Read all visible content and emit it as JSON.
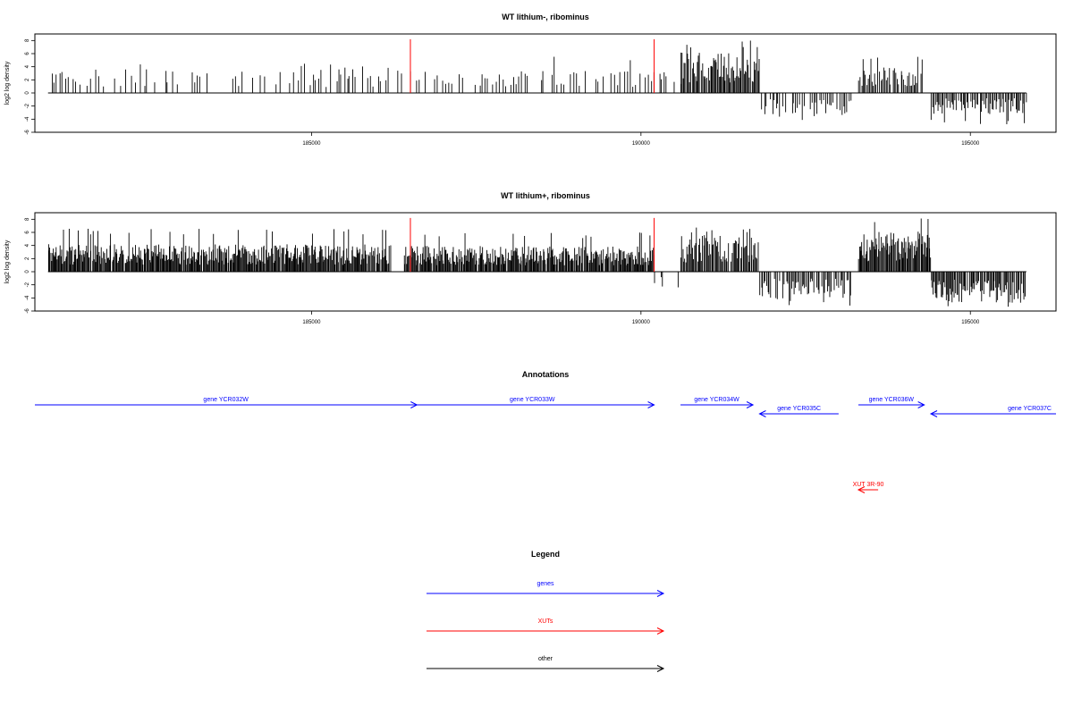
{
  "chart_data": [
    {
      "type": "bar",
      "title": "WT lithium-, ribominus",
      "ylabel": "log2 log density",
      "xlim": [
        180800,
        196300
      ],
      "ylim": [
        -6,
        9
      ],
      "yticks": [
        -6,
        -4,
        -2,
        0,
        2,
        4,
        6,
        8
      ],
      "ytick_labels": [
        "-6",
        "-4",
        "-2",
        "0",
        "2",
        "4",
        "6",
        "8"
      ],
      "xticks": [
        185000,
        190000,
        195000
      ],
      "xtick_labels": [
        "185000",
        "190000",
        "195000"
      ],
      "data_span": [
        181000,
        195850
      ],
      "marker_lines": {
        "color": "#ff0000",
        "x": [
          186500,
          190200
        ],
        "top": 8.2
      },
      "segments": [
        {
          "start": 181000,
          "end": 186400,
          "step": 40,
          "density": 0.55,
          "polarity": 1,
          "mean": 2.6,
          "max": 4.5
        },
        {
          "start": 186500,
          "end": 190600,
          "step": 40,
          "density": 0.6,
          "polarity": 1,
          "mean": 2.4,
          "max": 5.8
        },
        {
          "start": 190600,
          "end": 191800,
          "step": 15,
          "density": 0.97,
          "polarity": 1,
          "mean": 4.4,
          "max": 8.0
        },
        {
          "start": 191800,
          "end": 193200,
          "step": 30,
          "density": 0.75,
          "polarity": -1,
          "mean": 2.6,
          "max": 4.5
        },
        {
          "start": 193300,
          "end": 194300,
          "step": 20,
          "density": 0.85,
          "polarity": 1,
          "mean": 2.8,
          "max": 5.8
        },
        {
          "start": 194400,
          "end": 195850,
          "step": 20,
          "density": 0.9,
          "polarity": -1,
          "mean": 2.3,
          "max": 4.8
        }
      ]
    },
    {
      "type": "bar",
      "title": "WT lithium+, ribominus",
      "ylabel": "log2 log density",
      "xlim": [
        180800,
        196300
      ],
      "ylim": [
        -6,
        9
      ],
      "yticks": [
        -6,
        -4,
        -2,
        0,
        2,
        4,
        6,
        8
      ],
      "ytick_labels": [
        "-6",
        "-4",
        "-2",
        "0",
        "2",
        "4",
        "6",
        "8"
      ],
      "xticks": [
        185000,
        190000,
        195000
      ],
      "xtick_labels": [
        "185000",
        "190000",
        "195000"
      ],
      "data_span": [
        181000,
        195850
      ],
      "marker_lines": {
        "color": "#ff0000",
        "x": [
          186500,
          190200
        ],
        "top": 8.2
      },
      "segments": [
        {
          "start": 181000,
          "end": 186200,
          "step": 12,
          "density": 0.95,
          "polarity": 1,
          "mean": 3.0,
          "max": 6.6
        },
        {
          "start": 186400,
          "end": 190200,
          "step": 12,
          "density": 0.95,
          "polarity": 1,
          "mean": 2.8,
          "max": 6.0
        },
        {
          "start": 190200,
          "end": 190600,
          "step": 40,
          "density": 0.5,
          "polarity": -1,
          "mean": 1.8,
          "max": 3.0
        },
        {
          "start": 190600,
          "end": 191800,
          "step": 15,
          "density": 0.95,
          "polarity": 1,
          "mean": 4.0,
          "max": 7.0
        },
        {
          "start": 191800,
          "end": 193200,
          "step": 20,
          "density": 0.85,
          "polarity": -1,
          "mean": 3.0,
          "max": 5.2
        },
        {
          "start": 193300,
          "end": 194400,
          "step": 12,
          "density": 0.97,
          "polarity": 1,
          "mean": 4.4,
          "max": 8.2
        },
        {
          "start": 194400,
          "end": 195850,
          "step": 15,
          "density": 0.95,
          "polarity": -1,
          "mean": 3.4,
          "max": 6.0
        }
      ]
    }
  ],
  "annotations": {
    "title": "Annotations",
    "xlim": [
      180800,
      196300
    ],
    "items": [
      {
        "label": "gene YCR032W",
        "start": 180800,
        "end": 186600,
        "strand": "+",
        "row": 0,
        "color": "#0000ff"
      },
      {
        "label": "gene YCR033W",
        "start": 186500,
        "end": 190200,
        "strand": "+",
        "row": 0,
        "color": "#0000ff"
      },
      {
        "label": "gene YCR034W",
        "start": 190600,
        "end": 191700,
        "strand": "+",
        "row": 0,
        "color": "#0000ff"
      },
      {
        "label": "gene YCR035C",
        "start": 191800,
        "end": 193000,
        "strand": "-",
        "row": 1,
        "color": "#0000ff"
      },
      {
        "label": "gene YCR036W",
        "start": 193300,
        "end": 194300,
        "strand": "+",
        "row": 0,
        "color": "#0000ff"
      },
      {
        "label": "gene YCR037C",
        "start": 194400,
        "end": 196300,
        "strand": "-",
        "row": 1,
        "color": "#0000ff",
        "label_x": 195900
      },
      {
        "label": "XUT 3R-90",
        "start": 193300,
        "end": 193600,
        "strand": "-",
        "row": 2,
        "color": "#ff0000"
      }
    ]
  },
  "legend": {
    "title": "Legend",
    "items": [
      {
        "label": "genes",
        "color": "#0000ff"
      },
      {
        "label": "XUTs",
        "color": "#ff0000"
      },
      {
        "label": "other",
        "color": "#000000"
      }
    ]
  }
}
